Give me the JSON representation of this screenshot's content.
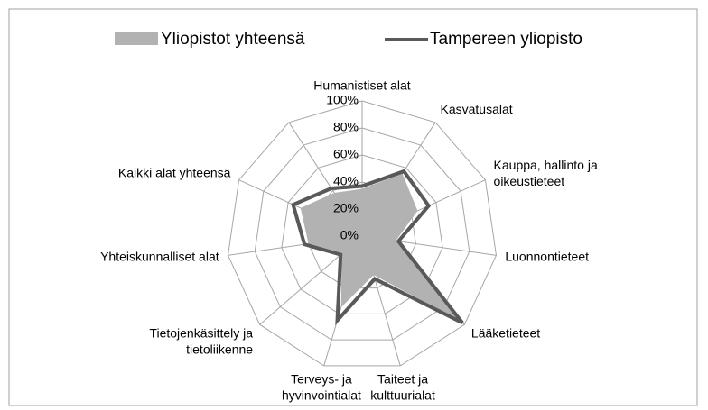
{
  "chart_data": {
    "type": "radar",
    "categories": [
      "Humanistiset alat",
      "Kasvatusalat",
      "Kauppa, hallinto ja oikeustieteet",
      "Luonnontieteet",
      "Lääketieteet",
      "Taiteet ja kulttuurialat",
      "Terveys- ja hyvinvointialat",
      "Tietojenkäsittely ja tietoliikenne",
      "Yhteiskunnalliset alat",
      "Kaikki alat yhteensä",
      null
    ],
    "series": [
      {
        "name": "Yliopistot yhteensä",
        "color": "#b2b2b2",
        "values": [
          35,
          55,
          45,
          25,
          95,
          30,
          55,
          20,
          40,
          50,
          38
        ]
      },
      {
        "name": "Tampereen yliopisto",
        "color": "#595959",
        "values": [
          37,
          57,
          54,
          27,
          98,
          33,
          65,
          21,
          43,
          56,
          42
        ]
      }
    ],
    "ylim": [
      0,
      100
    ],
    "yticks": [
      {
        "value": 0,
        "label": "0%"
      },
      {
        "value": 20,
        "label": "20%"
      },
      {
        "value": 40,
        "label": "40%"
      },
      {
        "value": 60,
        "label": "60%"
      },
      {
        "value": 80,
        "label": "80%"
      },
      {
        "value": 100,
        "label": "100%"
      }
    ],
    "grid": true
  }
}
